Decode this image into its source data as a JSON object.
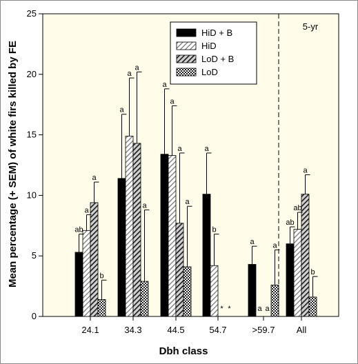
{
  "chart_data": {
    "type": "bar",
    "xlabel": "Dbh class",
    "ylabel": "Mean percentage (+ SEM) of white firs killed by FE",
    "ylim": [
      0,
      25
    ],
    "yticks": [
      0,
      5,
      10,
      15,
      20,
      25
    ],
    "categories": [
      "24.1",
      "34.3",
      "44.5",
      "54.7",
      ">59.7",
      "All"
    ],
    "annotation": "5-yr",
    "divider_after_category": ">59.7",
    "legend_position": "top-right",
    "series": [
      {
        "name": "HiD + B",
        "pattern": "solid-black",
        "values": [
          5.3,
          11.4,
          13.4,
          10.1,
          4.3,
          6.0
        ],
        "errors": [
          1.5,
          5.3,
          5.4,
          3.4,
          1.5,
          1.4
        ],
        "letters": [
          "ab",
          "a",
          "a",
          "a",
          "a",
          "ab"
        ]
      },
      {
        "name": "HiD",
        "pattern": "diagonal-light",
        "values": [
          7.1,
          14.9,
          13.3,
          4.2,
          0,
          7.2
        ],
        "errors": [
          1.3,
          4.8,
          4.1,
          2.6,
          0,
          1.4
        ],
        "letters": [
          "a",
          "a",
          "a",
          "b",
          "a",
          "ab"
        ]
      },
      {
        "name": "LoD + B",
        "pattern": "diagonal-dark",
        "values": [
          9.4,
          14.3,
          7.7,
          0,
          0,
          10.1
        ],
        "errors": [
          1.7,
          5.9,
          5.8,
          0,
          0,
          1.6
        ],
        "letters": [
          "a",
          "a",
          "a",
          "*",
          "a",
          "a"
        ]
      },
      {
        "name": "LoD",
        "pattern": "crosshatch",
        "values": [
          1.4,
          2.9,
          4.1,
          0,
          2.6,
          1.6
        ],
        "errors": [
          1.6,
          5.9,
          5.0,
          0,
          2.9,
          1.7
        ],
        "letters": [
          "b",
          "a",
          "a",
          "*",
          "a",
          "b"
        ]
      }
    ]
  }
}
